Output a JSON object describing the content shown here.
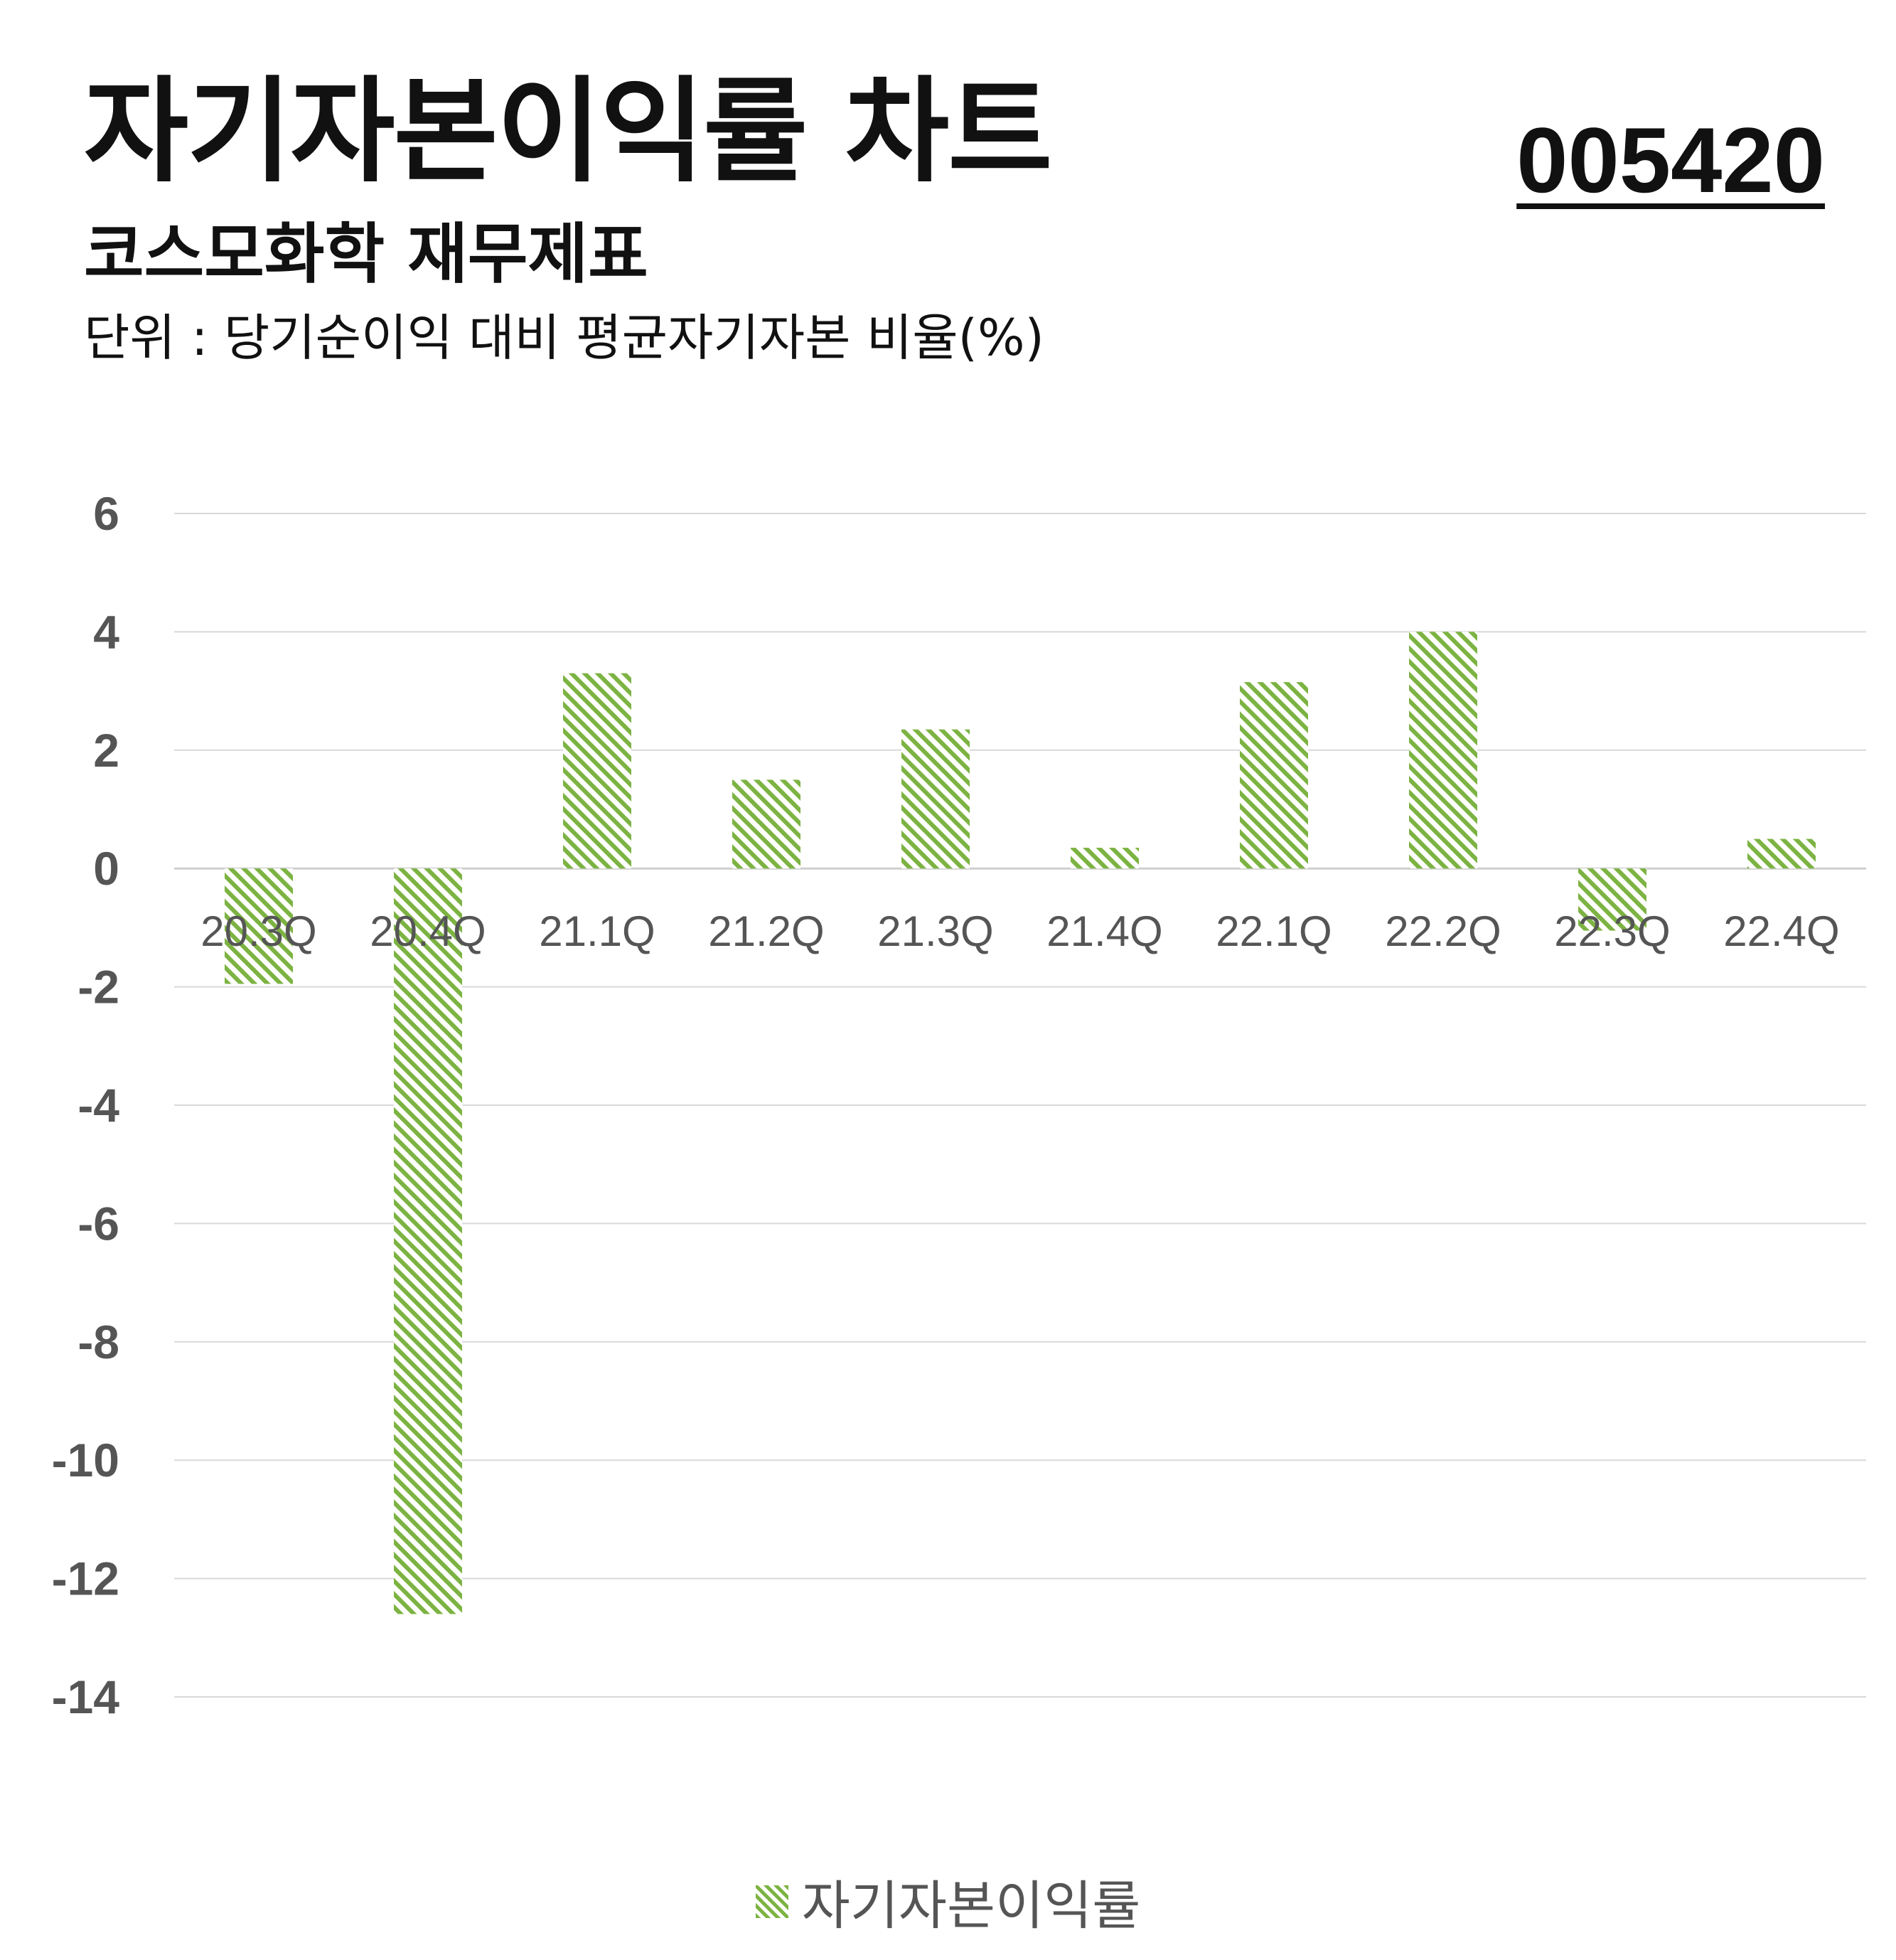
{
  "header": {
    "title": "자기자본이익률 차트",
    "code": "005420",
    "subtitle": "코스모화학 재무제표",
    "unit": "단위 : 당기순이익 대비 평균자기자본 비율(%)"
  },
  "colors": {
    "bar": "#7cb342",
    "grid": "#d9d9d9",
    "axis_text": "#555555"
  },
  "chart_data": {
    "type": "bar",
    "categories": [
      "20.3Q",
      "20.4Q",
      "21.1Q",
      "21.2Q",
      "21.3Q",
      "21.4Q",
      "22.1Q",
      "22.2Q",
      "22.3Q",
      "22.4Q"
    ],
    "series": [
      {
        "name": "자기자본이익률",
        "values": [
          -1.95,
          -12.6,
          3.3,
          1.5,
          2.35,
          0.35,
          3.15,
          4.0,
          -1.05,
          0.5
        ]
      }
    ],
    "yticks": [
      6,
      4,
      2,
      0,
      -2,
      -4,
      -6,
      -8,
      -10,
      -12,
      -14
    ],
    "ylim": [
      -14,
      6
    ],
    "grid": true,
    "legend": "bottom-center",
    "pattern": "diagonal-hatch"
  }
}
